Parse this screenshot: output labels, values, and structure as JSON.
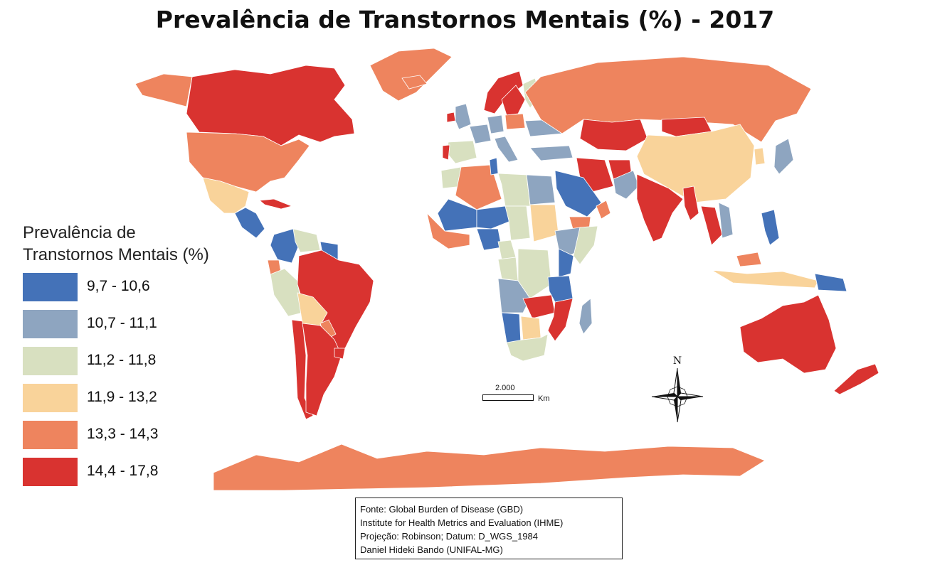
{
  "title": "Prevalência de Transtornos Mentais (%) - 2017",
  "legend": {
    "title_line1": "Prevalência de",
    "title_line2": "Transtornos Mentais (%)",
    "classes": [
      {
        "label": "9,7 - 10,6",
        "color": "#4472b8"
      },
      {
        "label": "10,7 - 11,1",
        "color": "#8ea5c0"
      },
      {
        "label": "11,2 - 11,8",
        "color": "#d8e0c0"
      },
      {
        "label": "11,9 - 13,2",
        "color": "#f9d39a"
      },
      {
        "label": "13,3 - 14,3",
        "color": "#ee845e"
      },
      {
        "label": "14,4 - 17,8",
        "color": "#d93330"
      }
    ]
  },
  "scale_bar": {
    "label": "2.000",
    "unit": "Km"
  },
  "north_arrow": {
    "label": "N",
    "icon": "compass-rose-icon"
  },
  "source": {
    "line1": "Fonte: Global Burden of Disease (GBD)",
    "line2": "Institute for Health Metrics and Evaluation (IHME)",
    "line3": "Projeção: Robinson; Datum: D_WGS_1984",
    "line4": "Daniel Hideki Bando (UNIFAL-MG)"
  },
  "regions": [
    {
      "name": "Canadá",
      "class": 5
    },
    {
      "name": "Estados Unidos",
      "class": 4
    },
    {
      "name": "Alasca",
      "class": 4
    },
    {
      "name": "Groenlândia",
      "class": 4
    },
    {
      "name": "México",
      "class": 3
    },
    {
      "name": "América Central",
      "class": 0
    },
    {
      "name": "Cuba",
      "class": 5
    },
    {
      "name": "Colômbia",
      "class": 0
    },
    {
      "name": "Venezuela",
      "class": 2
    },
    {
      "name": "Guiana",
      "class": 0
    },
    {
      "name": "Equador",
      "class": 4
    },
    {
      "name": "Peru",
      "class": 2
    },
    {
      "name": "Brasil",
      "class": 5
    },
    {
      "name": "Bolívia",
      "class": 3
    },
    {
      "name": "Paraguai",
      "class": 4
    },
    {
      "name": "Chile",
      "class": 5
    },
    {
      "name": "Argentina",
      "class": 5
    },
    {
      "name": "Uruguai",
      "class": 5
    },
    {
      "name": "Islândia",
      "class": 4
    },
    {
      "name": "Irlanda",
      "class": 5
    },
    {
      "name": "Reino Unido",
      "class": 1
    },
    {
      "name": "Espanha",
      "class": 2
    },
    {
      "name": "Portugal",
      "class": 5
    },
    {
      "name": "França",
      "class": 1
    },
    {
      "name": "Alemanha",
      "class": 1
    },
    {
      "name": "Itália",
      "class": 1
    },
    {
      "name": "Noruega",
      "class": 5
    },
    {
      "name": "Suécia",
      "class": 5
    },
    {
      "name": "Finlândia",
      "class": 2
    },
    {
      "name": "Polônia",
      "class": 4
    },
    {
      "name": "Ucrânia",
      "class": 1
    },
    {
      "name": "Turquia",
      "class": 1
    },
    {
      "name": "Rússia",
      "class": 4
    },
    {
      "name": "Cazaquistão",
      "class": 5
    },
    {
      "name": "Mongólia",
      "class": 5
    },
    {
      "name": "China",
      "class": 3
    },
    {
      "name": "Japão",
      "class": 1
    },
    {
      "name": "Coreia",
      "class": 3
    },
    {
      "name": "Irã",
      "class": 5
    },
    {
      "name": "Afeganistão",
      "class": 5
    },
    {
      "name": "Paquistão",
      "class": 1
    },
    {
      "name": "Índia",
      "class": 5
    },
    {
      "name": "Mianmar",
      "class": 5
    },
    {
      "name": "Tailândia",
      "class": 5
    },
    {
      "name": "Vietnã",
      "class": 1
    },
    {
      "name": "Filipinas",
      "class": 0
    },
    {
      "name": "Malásia",
      "class": 4
    },
    {
      "name": "Indonésia",
      "class": 3
    },
    {
      "name": "Papua-Nova Guiné",
      "class": 0
    },
    {
      "name": "Arábia Saudita",
      "class": 0
    },
    {
      "name": "Iêmen",
      "class": 4
    },
    {
      "name": "Omã",
      "class": 4
    },
    {
      "name": "Marrocos",
      "class": 2
    },
    {
      "name": "Argélia",
      "class": 4
    },
    {
      "name": "Tunísia",
      "class": 0
    },
    {
      "name": "Líbia",
      "class": 2
    },
    {
      "name": "Egito",
      "class": 1
    },
    {
      "name": "Mali",
      "class": 0
    },
    {
      "name": "Níger",
      "class": 0
    },
    {
      "name": "Chade",
      "class": 2
    },
    {
      "name": "Sudão",
      "class": 3
    },
    {
      "name": "Etiópia",
      "class": 1
    },
    {
      "name": "Somália",
      "class": 2
    },
    {
      "name": "África Ocidental",
      "class": 4
    },
    {
      "name": "Nigéria",
      "class": 0
    },
    {
      "name": "Camarões",
      "class": 2
    },
    {
      "name": "Congo",
      "class": 2
    },
    {
      "name": "Rep. Dem. do Congo",
      "class": 2
    },
    {
      "name": "Quênia",
      "class": 0
    },
    {
      "name": "Tanzânia",
      "class": 0
    },
    {
      "name": "Angola",
      "class": 1
    },
    {
      "name": "Zâmbia",
      "class": 5
    },
    {
      "name": "Moçambique",
      "class": 5
    },
    {
      "name": "Namíbia",
      "class": 0
    },
    {
      "name": "Botsuana",
      "class": 3
    },
    {
      "name": "África do Sul",
      "class": 2
    },
    {
      "name": "Madagascar",
      "class": 1
    },
    {
      "name": "Austrália",
      "class": 5
    },
    {
      "name": "Nova Zelândia",
      "class": 5
    },
    {
      "name": "Antártida",
      "class": 4
    }
  ]
}
